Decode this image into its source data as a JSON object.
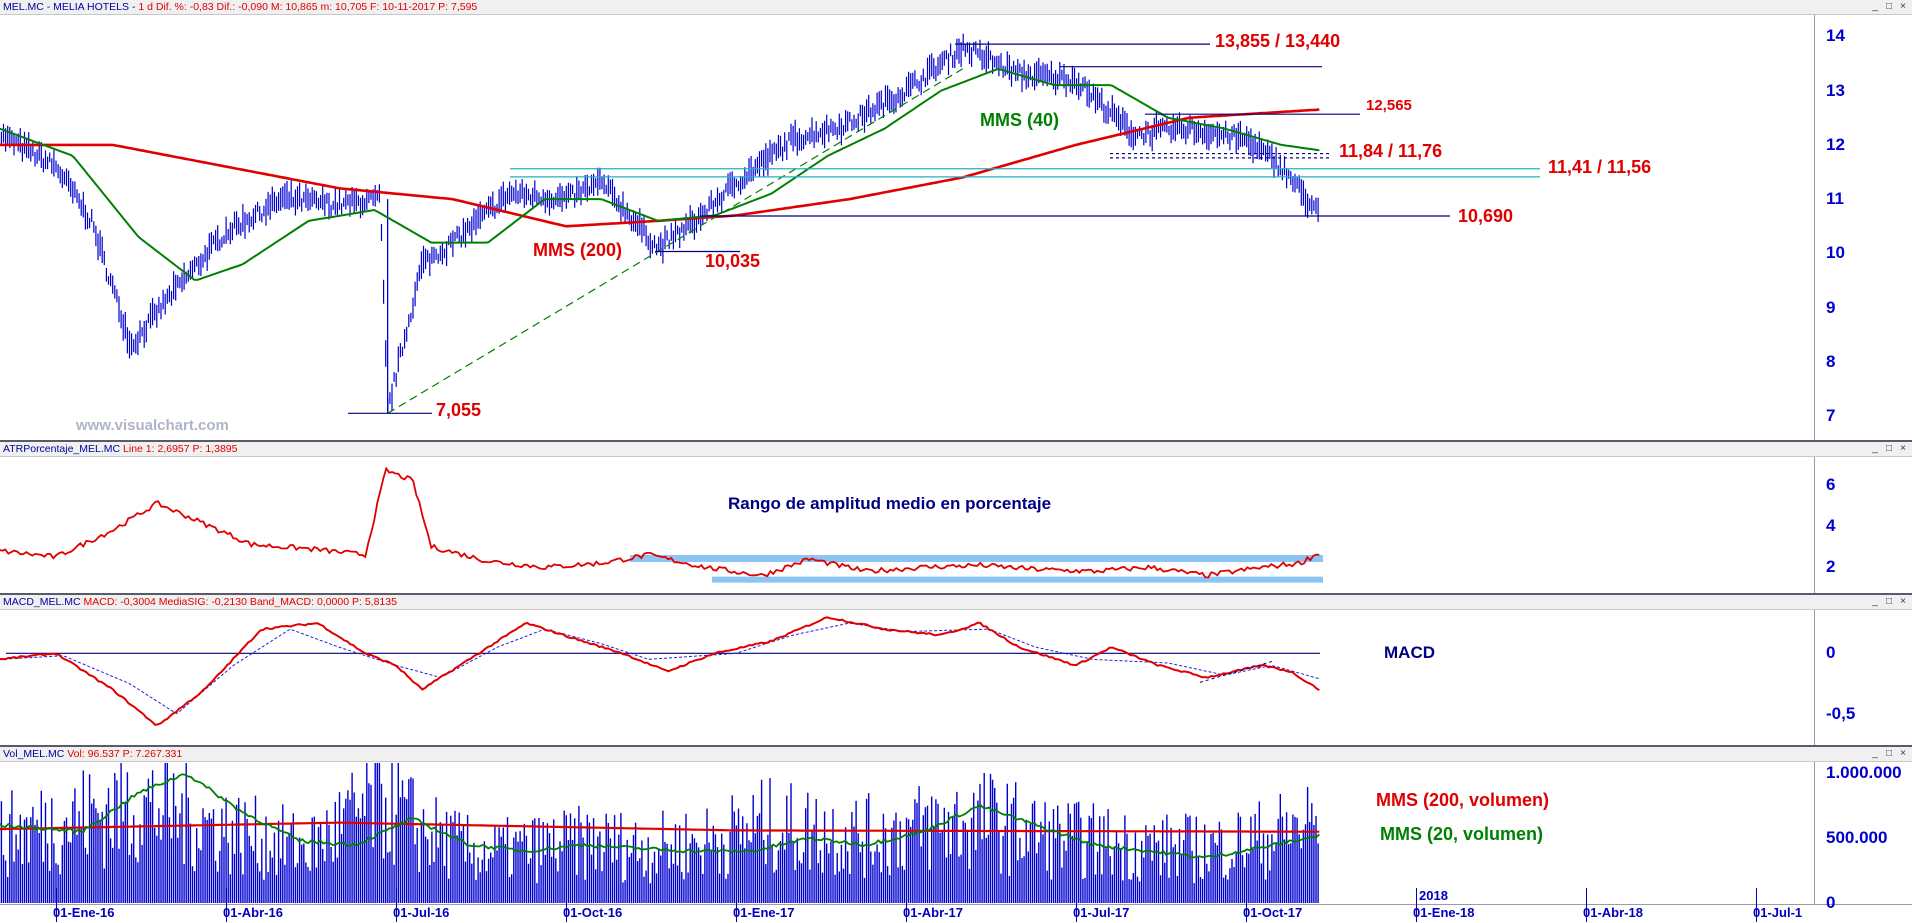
{
  "chart_data": [
    {
      "type": "line",
      "header": {
        "title": "MEL.MC - MELIA HOTELS - ",
        "info": "1 d  Dif. %: -0,83  Dif.: -0,090  M: 10,865  m: 10,705  F: 10-11-2017  P: 7,595"
      },
      "yticks": [
        "14",
        "13",
        "12",
        "11",
        "10",
        "9",
        "8",
        "7"
      ],
      "ylim": [
        6.6,
        14.3
      ],
      "x": [
        "01-Ene-16",
        "01-Abr-16",
        "01-Jul-16",
        "01-Oct-16",
        "01-Ene-17",
        "01-Abr-17",
        "01-Jul-17",
        "01-Oct-17",
        "01-Ene-18",
        "01-Abr-18",
        "01-Jul-1"
      ],
      "x_year_label": "2018",
      "series": [
        {
          "name": "",
          "kind": "ohlc-bars",
          "color": "#0000d0",
          "points": [
            [
              "2015-12-01",
              12.2
            ],
            [
              "2016-01-01",
              11.6
            ],
            [
              "2016-01-20",
              10.6
            ],
            [
              "2016-02-11",
              8.3
            ],
            [
              "2016-03-01",
              9.2
            ],
            [
              "2016-04-01",
              10.4
            ],
            [
              "2016-05-01",
              11.0
            ],
            [
              "2016-06-01",
              10.9
            ],
            [
              "2016-06-23",
              11.0
            ],
            [
              "2016-06-27",
              7.1
            ],
            [
              "2016-07-15",
              9.8
            ],
            [
              "2016-08-01",
              10.2
            ],
            [
              "2016-09-01",
              11.1
            ],
            [
              "2016-10-01",
              11.0
            ],
            [
              "2016-10-20",
              11.3
            ],
            [
              "2016-11-20",
              10.1
            ],
            [
              "2016-12-10",
              10.6
            ],
            [
              "2017-01-01",
              11.3
            ],
            [
              "2017-02-01",
              12.1
            ],
            [
              "2017-03-01",
              12.4
            ],
            [
              "2017-04-01",
              13.0
            ],
            [
              "2017-05-01",
              13.8
            ],
            [
              "2017-06-01",
              13.3
            ],
            [
              "2017-07-01",
              13.2
            ],
            [
              "2017-08-01",
              12.2
            ],
            [
              "2017-09-01",
              12.3
            ],
            [
              "2017-10-01",
              12.1
            ],
            [
              "2017-10-20",
              11.6
            ],
            [
              "2017-11-10",
              10.7
            ]
          ]
        },
        {
          "name": "MMS (40)",
          "color": "#008000",
          "points": [
            [
              "2015-12-01",
              12.3
            ],
            [
              "2016-01-10",
              11.8
            ],
            [
              "2016-02-15",
              10.3
            ],
            [
              "2016-03-15",
              9.5
            ],
            [
              "2016-04-10",
              9.8
            ],
            [
              "2016-05-15",
              10.6
            ],
            [
              "2016-06-20",
              10.8
            ],
            [
              "2016-07-20",
              10.2
            ],
            [
              "2016-08-20",
              10.2
            ],
            [
              "2016-09-20",
              11.0
            ],
            [
              "2016-10-20",
              11.0
            ],
            [
              "2016-11-20",
              10.6
            ],
            [
              "2016-12-20",
              10.7
            ],
            [
              "2017-01-20",
              11.1
            ],
            [
              "2017-02-20",
              11.8
            ],
            [
              "2017-03-20",
              12.3
            ],
            [
              "2017-04-20",
              13.0
            ],
            [
              "2017-05-20",
              13.4
            ],
            [
              "2017-06-20",
              13.1
            ],
            [
              "2017-07-20",
              13.1
            ],
            [
              "2017-08-20",
              12.5
            ],
            [
              "2017-09-20",
              12.3
            ],
            [
              "2017-10-20",
              12.0
            ],
            [
              "2017-11-10",
              11.9
            ]
          ]
        },
        {
          "name": "MMS (200)",
          "color": "#e00000",
          "points": [
            [
              "2015-12-01",
              12.0
            ],
            [
              "2016-02-01",
              12.0
            ],
            [
              "2016-04-01",
              11.6
            ],
            [
              "2016-06-01",
              11.2
            ],
            [
              "2016-08-01",
              11.0
            ],
            [
              "2016-10-01",
              10.5
            ],
            [
              "2016-11-20",
              10.6
            ],
            [
              "2017-01-01",
              10.7
            ],
            [
              "2017-03-01",
              11.0
            ],
            [
              "2017-05-01",
              11.4
            ],
            [
              "2017-07-01",
              12.0
            ],
            [
              "2017-09-01",
              12.5
            ],
            [
              "2017-11-10",
              12.65
            ]
          ]
        }
      ],
      "annotations": [
        {
          "text": "13,855 / 13,440",
          "color": "#e00000"
        },
        {
          "text": "12,565",
          "color": "#e00000"
        },
        {
          "text": "11,84 / 11,76",
          "color": "#e00000"
        },
        {
          "text": "11,41 / 11,56",
          "color": "#e00000"
        },
        {
          "text": "10,690",
          "color": "#e00000"
        },
        {
          "text": "10,035",
          "color": "#e00000"
        },
        {
          "text": "7,055",
          "color": "#e00000"
        },
        {
          "text": "MMS (40)",
          "color": "#008000"
        },
        {
          "text": "MMS (200)",
          "color": "#e00000"
        }
      ],
      "levels": [
        13.855,
        13.44,
        12.565,
        11.84,
        11.76,
        11.56,
        11.41,
        10.69,
        10.035,
        7.055
      ],
      "trendline": [
        [
          "2016-06-27",
          7.055
        ],
        [
          "2017-05-01",
          13.4
        ]
      ],
      "watermark": "www.visualchart.com"
    },
    {
      "type": "line",
      "header": {
        "title": "ATRPorcentaje_MEL.MC",
        "info": "Line 1: 2,6957  P: 1,3895"
      },
      "label": "Rango de amplitud medio en porcentaje",
      "yticks": [
        "6",
        "4",
        "2"
      ],
      "ylim": [
        0.8,
        7.3
      ],
      "series": [
        {
          "name": "",
          "color": "#e00000",
          "points": [
            [
              "2015-12-01",
              2.8
            ],
            [
              "2016-01-01",
              2.5
            ],
            [
              "2016-02-01",
              3.8
            ],
            [
              "2016-02-25",
              5.1
            ],
            [
              "2016-03-15",
              4.3
            ],
            [
              "2016-04-15",
              3.1
            ],
            [
              "2016-05-15",
              2.9
            ],
            [
              "2016-06-15",
              2.6
            ],
            [
              "2016-06-26",
              6.7
            ],
            [
              "2016-07-10",
              6.2
            ],
            [
              "2016-07-20",
              3.0
            ],
            [
              "2016-08-20",
              2.3
            ],
            [
              "2016-09-20",
              2.0
            ],
            [
              "2016-10-20",
              2.2
            ],
            [
              "2016-11-15",
              2.6
            ],
            [
              "2016-12-15",
              2.0
            ],
            [
              "2017-01-15",
              1.6
            ],
            [
              "2017-02-10",
              2.4
            ],
            [
              "2017-03-10",
              1.8
            ],
            [
              "2017-04-10",
              2.0
            ],
            [
              "2017-05-10",
              2.1
            ],
            [
              "2017-06-10",
              1.9
            ],
            [
              "2017-07-10",
              1.8
            ],
            [
              "2017-08-10",
              2.0
            ],
            [
              "2017-09-10",
              1.6
            ],
            [
              "2017-10-10",
              2.0
            ],
            [
              "2017-10-30",
              2.2
            ],
            [
              "2017-11-10",
              2.7
            ]
          ]
        }
      ],
      "bands": [
        2.4,
        1.4
      ]
    },
    {
      "type": "line",
      "header": {
        "title": "MACD_MEL.MC",
        "info": "MACD: -0,3004  MediaSIG: -0,2130  Band_MACD: 0,0000  P: 5,8135"
      },
      "label": "MACD",
      "yticks": [
        "0",
        "-0,5"
      ],
      "ylim": [
        -0.75,
        0.35
      ],
      "series": [
        {
          "name": "MACD",
          "color": "#e00000",
          "points": [
            [
              "2015-12-01",
              -0.05
            ],
            [
              "2016-01-01",
              0.0
            ],
            [
              "2016-02-01",
              -0.3
            ],
            [
              "2016-02-25",
              -0.6
            ],
            [
              "2016-03-20",
              -0.3
            ],
            [
              "2016-04-20",
              0.2
            ],
            [
              "2016-05-20",
              0.25
            ],
            [
              "2016-06-15",
              0.0
            ],
            [
              "2016-07-01",
              -0.1
            ],
            [
              "2016-07-15",
              -0.3
            ],
            [
              "2016-08-15",
              0.0
            ],
            [
              "2016-09-10",
              0.25
            ],
            [
              "2016-10-10",
              0.1
            ],
            [
              "2016-11-01",
              0.0
            ],
            [
              "2016-11-25",
              -0.15
            ],
            [
              "2016-12-20",
              0.0
            ],
            [
              "2017-01-20",
              0.1
            ],
            [
              "2017-02-20",
              0.3
            ],
            [
              "2017-03-20",
              0.2
            ],
            [
              "2017-04-20",
              0.15
            ],
            [
              "2017-05-10",
              0.25
            ],
            [
              "2017-06-01",
              0.05
            ],
            [
              "2017-07-01",
              -0.1
            ],
            [
              "2017-07-20",
              0.05
            ],
            [
              "2017-08-15",
              -0.1
            ],
            [
              "2017-09-10",
              -0.2
            ],
            [
              "2017-10-10",
              -0.1
            ],
            [
              "2017-10-25",
              -0.15
            ],
            [
              "2017-11-10",
              -0.3
            ]
          ]
        },
        {
          "name": "MediaSIG",
          "color": "#2020e0",
          "points": [
            [
              "2015-12-01",
              -0.05
            ],
            [
              "2016-01-05",
              -0.02
            ],
            [
              "2016-02-10",
              -0.25
            ],
            [
              "2016-03-05",
              -0.5
            ],
            [
              "2016-04-05",
              -0.1
            ],
            [
              "2016-05-05",
              0.2
            ],
            [
              "2016-06-01",
              0.05
            ],
            [
              "2016-07-01",
              -0.1
            ],
            [
              "2016-07-25",
              -0.2
            ],
            [
              "2016-08-25",
              0.05
            ],
            [
              "2016-09-20",
              0.2
            ],
            [
              "2016-10-20",
              0.08
            ],
            [
              "2016-11-15",
              -0.05
            ],
            [
              "2017-01-01",
              0.0
            ],
            [
              "2017-02-01",
              0.15
            ],
            [
              "2017-03-01",
              0.25
            ],
            [
              "2017-04-01",
              0.18
            ],
            [
              "2017-05-15",
              0.2
            ],
            [
              "2017-06-10",
              0.05
            ],
            [
              "2017-07-10",
              -0.05
            ],
            [
              "2017-08-20",
              -0.08
            ],
            [
              "2017-09-20",
              -0.18
            ],
            [
              "2017-10-15",
              -0.1
            ],
            [
              "2017-11-10",
              -0.21
            ]
          ]
        }
      ]
    },
    {
      "type": "bar",
      "header": {
        "title": "Vol_MEL.MC",
        "info": "Vol: 96.537  P: 7.267.331"
      },
      "yticks": [
        "1.000.000",
        "500.000",
        "0"
      ],
      "ylim": [
        0,
        1080000
      ],
      "volume_profile": [
        [
          "2015-12-01",
          600000
        ],
        [
          "2016-01-15",
          780000
        ],
        [
          "2016-02-15",
          900000
        ],
        [
          "2016-03-15",
          750000
        ],
        [
          "2016-04-15",
          600000
        ],
        [
          "2016-05-15",
          500000
        ],
        [
          "2016-06-25",
          950000
        ],
        [
          "2016-07-15",
          650000
        ],
        [
          "2016-08-15",
          450000
        ],
        [
          "2016-09-15",
          500000
        ],
        [
          "2016-10-15",
          550000
        ],
        [
          "2016-11-15",
          500000
        ],
        [
          "2016-12-15",
          550000
        ],
        [
          "2017-01-15",
          700000
        ],
        [
          "2017-02-15",
          650000
        ],
        [
          "2017-03-15",
          600000
        ],
        [
          "2017-04-15",
          700000
        ],
        [
          "2017-05-15",
          750000
        ],
        [
          "2017-06-15",
          600000
        ],
        [
          "2017-07-15",
          550000
        ],
        [
          "2017-08-15",
          500000
        ],
        [
          "2017-09-15",
          500000
        ],
        [
          "2017-10-15",
          600000
        ],
        [
          "2017-11-10",
          750000
        ]
      ],
      "series": [
        {
          "name": "MMS (200, volumen)",
          "color": "#e00000",
          "points": [
            [
              "2015-12-01",
              570000
            ],
            [
              "2016-06-01",
              620000
            ],
            [
              "2017-01-01",
              560000
            ],
            [
              "2017-11-10",
              550000
            ]
          ]
        },
        {
          "name": "MMS (20, volumen)",
          "color": "#008000",
          "points": [
            [
              "2015-12-01",
              600000
            ],
            [
              "2016-01-15",
              550000
            ],
            [
              "2016-02-15",
              850000
            ],
            [
              "2016-03-10",
              1000000
            ],
            [
              "2016-04-10",
              700000
            ],
            [
              "2016-05-10",
              480000
            ],
            [
              "2016-06-10",
              450000
            ],
            [
              "2016-07-10",
              650000
            ],
            [
              "2016-08-10",
              450000
            ],
            [
              "2016-09-10",
              400000
            ],
            [
              "2016-10-10",
              450000
            ],
            [
              "2016-11-10",
              420000
            ],
            [
              "2016-12-10",
              400000
            ],
            [
              "2017-01-10",
              400000
            ],
            [
              "2017-02-10",
              500000
            ],
            [
              "2017-03-10",
              450000
            ],
            [
              "2017-04-10",
              550000
            ],
            [
              "2017-05-10",
              750000
            ],
            [
              "2017-06-10",
              600000
            ],
            [
              "2017-07-10",
              450000
            ],
            [
              "2017-08-10",
              400000
            ],
            [
              "2017-09-10",
              350000
            ],
            [
              "2017-10-10",
              430000
            ],
            [
              "2017-11-10",
              520000
            ]
          ]
        }
      ]
    }
  ],
  "colors": {
    "price": "#0000d0",
    "ma_short": "#008000",
    "ma_long": "#e00000",
    "band": "#8cc4f4",
    "axis": "#0000d0"
  },
  "window_buttons": [
    "_",
    "□",
    "×"
  ]
}
